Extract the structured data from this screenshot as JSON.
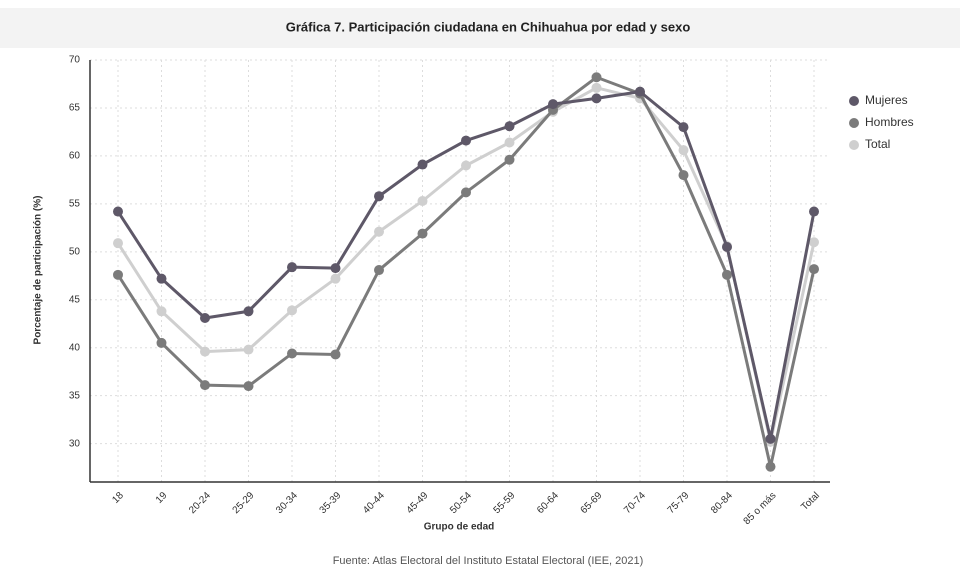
{
  "chart_data": {
    "type": "line",
    "title": "Gráfica 7. Participación ciudadana en Chihuahua por edad y sexo",
    "x_label": "Grupo de edad",
    "y_label": "Porcentaje de participación (%)",
    "source": "Fuente: Atlas Electoral del Instituto Estatal Electoral (IEE, 2021)",
    "categories": [
      "18",
      "19",
      "20-24",
      "25-29",
      "30-34",
      "35-39",
      "40-44",
      "45-49",
      "50-54",
      "55-59",
      "60-64",
      "65-69",
      "70-74",
      "75-79",
      "80-84",
      "85 o más",
      "Total"
    ],
    "series": [
      {
        "name": "Mujeres",
        "color": "#5e5868",
        "values": [
          54.2,
          47.2,
          43.1,
          43.8,
          48.4,
          48.3,
          55.8,
          59.1,
          61.6,
          63.1,
          65.4,
          66.0,
          66.7,
          63.0,
          50.5,
          30.5,
          54.2
        ]
      },
      {
        "name": "Hombres",
        "color": "#7b7b7b",
        "values": [
          47.6,
          40.5,
          36.1,
          36.0,
          39.4,
          39.3,
          48.1,
          51.9,
          56.2,
          59.6,
          64.8,
          68.2,
          66.5,
          58.0,
          47.6,
          27.6,
          48.2
        ]
      },
      {
        "name": "Total",
        "color": "#cfcfcf",
        "values": [
          50.9,
          43.8,
          39.6,
          39.8,
          43.9,
          47.2,
          52.1,
          55.3,
          59.0,
          61.4,
          64.6,
          67.1,
          66.0,
          60.6,
          50.6,
          30.2,
          51.0
        ]
      }
    ],
    "ylim": [
      26,
      70
    ],
    "yticks": [
      30,
      35,
      40,
      45,
      50,
      55,
      60,
      65,
      70
    ],
    "grid": true,
    "legend": "right"
  }
}
